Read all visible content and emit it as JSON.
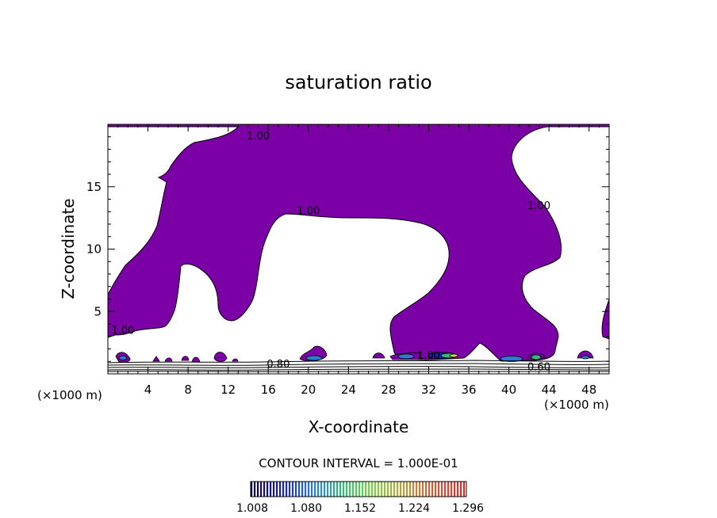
{
  "chart_data": {
    "type": "contour",
    "title": "saturation ratio",
    "xlabel": "X-coordinate",
    "ylabel": "Z-coordinate",
    "x_unit": "(×1000 m)",
    "xlim": [
      0,
      50
    ],
    "ylim": [
      0,
      20
    ],
    "x_ticks": [
      4,
      8,
      12,
      16,
      20,
      24,
      28,
      32,
      36,
      40,
      44,
      48
    ],
    "y_ticks": [
      5,
      10,
      15
    ],
    "contour_labels": [
      {
        "text": "1.00",
        "x": 15.0,
        "z": 18.8
      },
      {
        "text": "1.00",
        "x": 20.0,
        "z": 12.8
      },
      {
        "text": "1.00",
        "x": 43.0,
        "z": 13.2
      },
      {
        "text": "1.00",
        "x": 1.5,
        "z": 3.2
      },
      {
        "text": "1.00",
        "x": 32.0,
        "z": 1.2
      },
      {
        "text": "0.80",
        "x": 17.0,
        "z": 0.5
      },
      {
        "text": "0.60",
        "x": 43.0,
        "z": 0.3
      }
    ],
    "fill_color_supersaturated": "#7b00a6",
    "contour_interval": "CONTOUR INTERVAL = 1.000E-01",
    "colorbar": {
      "tick_labels": [
        "1.008",
        "1.080",
        "1.152",
        "1.224",
        "1.296"
      ],
      "colors": [
        "#10003a",
        "#1a1f9e",
        "#2d7ad6",
        "#38b87a",
        "#7ed04a",
        "#b5a040",
        "#c76040",
        "#d13030"
      ]
    }
  }
}
